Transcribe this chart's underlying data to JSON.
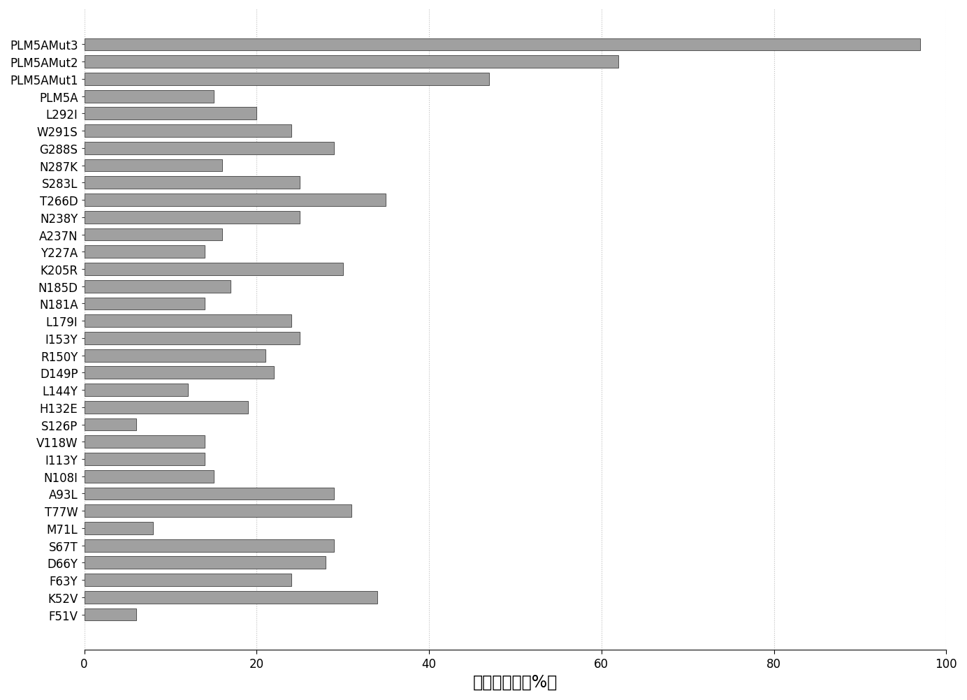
{
  "categories": [
    "F51V",
    "K52V",
    "F63Y",
    "D66Y",
    "S67T",
    "M71L",
    "T77W",
    "A93L",
    "N108I",
    "I113Y",
    "V118W",
    "S126P",
    "H132E",
    "L144Y",
    "D149P",
    "R150Y",
    "I153Y",
    "L179I",
    "N181A",
    "N185D",
    "K205R",
    "Y227A",
    "A237N",
    "N238Y",
    "T266D",
    "S283L",
    "N287K",
    "G288S",
    "W291S",
    "L292I",
    "PLM5A",
    "PLM5AMut1",
    "PLM5AMut2",
    "PLM5AMut3"
  ],
  "values": [
    6,
    34,
    24,
    28,
    29,
    8,
    31,
    29,
    15,
    14,
    14,
    6,
    19,
    12,
    22,
    21,
    25,
    24,
    14,
    17,
    30,
    14,
    16,
    25,
    35,
    25,
    16,
    29,
    24,
    20,
    15,
    47,
    62,
    97
  ],
  "bar_color": "#a0a0a0",
  "bar_edge_color": "#404040",
  "xlabel": "剩余酶活力（%）",
  "xlim": [
    0,
    100
  ],
  "xticks": [
    0,
    20,
    40,
    60,
    80,
    100
  ],
  "background_color": "#ffffff",
  "grid_color": "#bbbbbb",
  "bar_height": 0.72,
  "xlabel_fontsize": 17,
  "tick_fontsize": 12,
  "label_fontsize": 12
}
